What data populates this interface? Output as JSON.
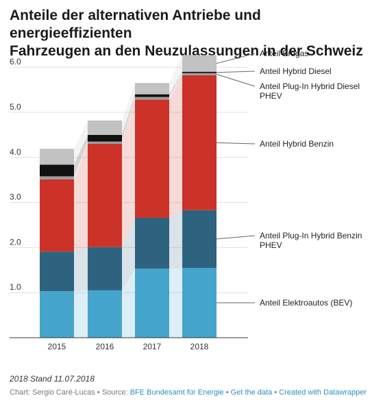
{
  "title_line1": "Anteile der alternativen Antriebe und energieeffizienten",
  "title_line2": "Fahrzeugen an den Neuzulassungen in der Schweiz",
  "note": "2018 Stand 11.07.2018",
  "footer": {
    "credit": "Chart: Sergio Caré-Lucas",
    "source_prefix": "Source:",
    "source": "BFE Bundesamt für Energie",
    "get_data": "Get the data",
    "created": "Created with Datawrapper",
    "separator": "•"
  },
  "chart_data": {
    "type": "bar",
    "stacked": true,
    "categories": [
      "2015",
      "2016",
      "2017",
      "2018"
    ],
    "ylim": [
      0,
      6.2
    ],
    "yticks": [
      1.0,
      2.0,
      3.0,
      4.0,
      5.0,
      6.0
    ],
    "ytick_labels": [
      "1.0",
      "2.0",
      "3.0",
      "4.0",
      "5.0",
      "6.0"
    ],
    "grid": true,
    "legend_position": "right (labels next to 2018 bar)",
    "series": [
      {
        "name": "Anteil Elektroautos (BEV)",
        "color": "#45a5cc",
        "values": [
          1.03,
          1.05,
          1.53,
          1.55
        ]
      },
      {
        "name": "Anteil Plug-In Hybrid Benzin PHEV",
        "color": "#2e6380",
        "values": [
          0.88,
          0.96,
          1.13,
          1.28
        ]
      },
      {
        "name": "Anteil Hybrid Benzin",
        "color": "#cc3228",
        "values": [
          1.6,
          2.29,
          2.62,
          2.99
        ]
      },
      {
        "name": "Anteil Plug-In Hybrid Diesel PHEV",
        "color": "#9e9e9e",
        "values": [
          0.07,
          0.05,
          0.06,
          0.05
        ]
      },
      {
        "name": "Anteil Hybrid Diesel",
        "color": "#111111",
        "values": [
          0.26,
          0.15,
          0.06,
          0.03
        ]
      },
      {
        "name": "Anteil Erdgas",
        "color": "#c2c2c2",
        "values": [
          0.35,
          0.32,
          0.25,
          0.37
        ]
      }
    ],
    "legend_lines": [
      [
        "Anteil Elektroautos (BEV)"
      ],
      [
        "Anteil Plug-In Hybrid Benzin",
        "PHEV"
      ],
      [
        "Anteil Hybrid Benzin"
      ],
      [
        "Anteil Plug-In Hybrid Diesel",
        "PHEV"
      ],
      [
        "Anteil Hybrid Diesel"
      ],
      [
        "Anteil Erdgas"
      ]
    ]
  }
}
